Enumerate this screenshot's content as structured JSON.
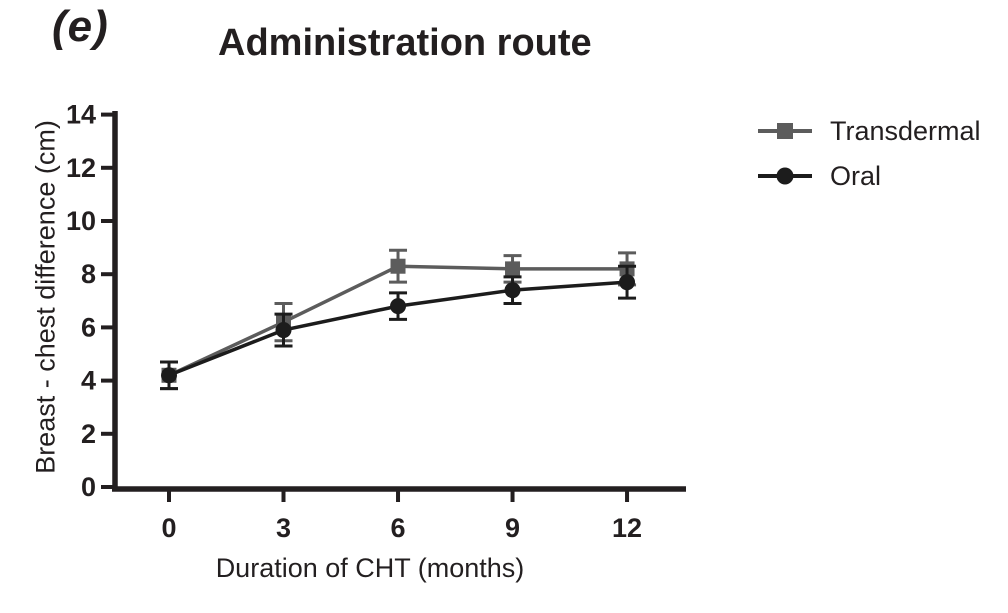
{
  "figure": {
    "panel_label": "(e)",
    "title": "Administration route"
  },
  "chart_data": {
    "type": "line",
    "panel_label": "(e)",
    "title": "Administration route",
    "xlabel": "Duration of CHT (months)",
    "ylabel": "Breast - chest difference (cm)",
    "x": [
      0,
      3,
      6,
      9,
      12
    ],
    "xticks": [
      "0",
      "3",
      "6",
      "9",
      "12"
    ],
    "yticks": [
      0,
      2,
      4,
      6,
      8,
      10,
      12,
      14
    ],
    "ylim": [
      0,
      14
    ],
    "xlim": [
      -1.5,
      13.5
    ],
    "grid": false,
    "error_bars": true,
    "legend_position": "right-outside",
    "axis_color": "#231f20",
    "text_color": "#231f20",
    "background_color": "#ffffff",
    "series": [
      {
        "name": "Transdermal",
        "marker": "square",
        "color": "#5c5c5c",
        "values": [
          4.2,
          6.2,
          8.3,
          8.2,
          8.2
        ],
        "errors": [
          0.5,
          0.7,
          0.6,
          0.5,
          0.6
        ]
      },
      {
        "name": "Oral",
        "marker": "circle",
        "color": "#1c1c1c",
        "values": [
          4.2,
          5.9,
          6.8,
          7.4,
          7.7
        ],
        "errors": [
          0.5,
          0.6,
          0.5,
          0.5,
          0.6
        ]
      }
    ]
  }
}
